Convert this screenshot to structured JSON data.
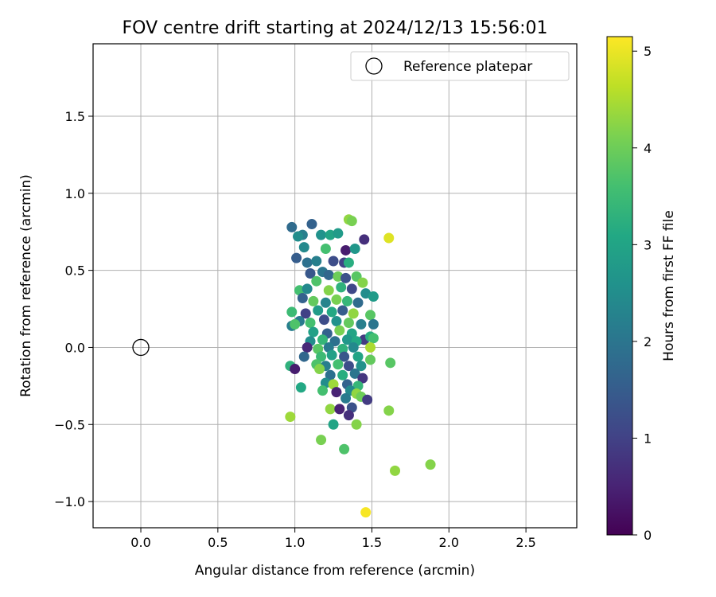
{
  "chart_data": {
    "type": "scatter",
    "title": "FOV centre drift starting at 2024/12/13 15:56:01",
    "xlabel": "Angular distance from reference (arcmin)",
    "ylabel": "Rotation from reference (arcmin)",
    "xlim": [
      -0.31,
      2.83
    ],
    "ylim": [
      -1.17,
      1.97
    ],
    "xticks": [
      0.0,
      0.5,
      1.0,
      1.5,
      2.0,
      2.5
    ],
    "xtick_labels": [
      "0.0",
      "0.5",
      "1.0",
      "1.5",
      "2.0",
      "2.5"
    ],
    "yticks": [
      -1.0,
      -0.5,
      0.0,
      0.5,
      1.0,
      1.5
    ],
    "ytick_labels": [
      "−1.0",
      "−0.5",
      "0.0",
      "0.5",
      "1.0",
      "1.5"
    ],
    "grid": true,
    "legend": {
      "placement": "top-right",
      "label": "Reference platepar"
    },
    "reference_point": {
      "x": 0.0,
      "y": 0.0
    },
    "colorbar": {
      "label": "Hours from first FF file",
      "range": [
        0,
        5.15
      ],
      "ticks": [
        0,
        1,
        2,
        3,
        4,
        5
      ],
      "tick_labels": [
        "0",
        "1",
        "2",
        "3",
        "4",
        "5"
      ],
      "colormap": "viridis"
    },
    "points": [
      {
        "x": 0.98,
        "y": 0.78,
        "h": 1.8
      },
      {
        "x": 1.11,
        "y": 0.8,
        "h": 1.6
      },
      {
        "x": 1.05,
        "y": 0.73,
        "h": 2.2
      },
      {
        "x": 1.02,
        "y": 0.72,
        "h": 2.5
      },
      {
        "x": 1.17,
        "y": 0.73,
        "h": 2.6
      },
      {
        "x": 1.23,
        "y": 0.73,
        "h": 3.0
      },
      {
        "x": 1.28,
        "y": 0.74,
        "h": 2.8
      },
      {
        "x": 1.35,
        "y": 0.83,
        "h": 4.3
      },
      {
        "x": 1.37,
        "y": 0.82,
        "h": 4.1
      },
      {
        "x": 1.45,
        "y": 0.7,
        "h": 0.7
      },
      {
        "x": 1.61,
        "y": 0.71,
        "h": 4.9
      },
      {
        "x": 1.06,
        "y": 0.65,
        "h": 2.4
      },
      {
        "x": 1.2,
        "y": 0.64,
        "h": 3.6
      },
      {
        "x": 1.33,
        "y": 0.63,
        "h": 0.4
      },
      {
        "x": 1.39,
        "y": 0.64,
        "h": 2.7
      },
      {
        "x": 1.01,
        "y": 0.58,
        "h": 1.5
      },
      {
        "x": 1.08,
        "y": 0.55,
        "h": 1.9
      },
      {
        "x": 1.14,
        "y": 0.56,
        "h": 2.2
      },
      {
        "x": 1.25,
        "y": 0.56,
        "h": 1.2
      },
      {
        "x": 1.32,
        "y": 0.55,
        "h": 1.0
      },
      {
        "x": 1.35,
        "y": 0.55,
        "h": 3.2
      },
      {
        "x": 1.1,
        "y": 0.48,
        "h": 1.4
      },
      {
        "x": 1.18,
        "y": 0.49,
        "h": 2.0
      },
      {
        "x": 1.22,
        "y": 0.47,
        "h": 1.7
      },
      {
        "x": 1.28,
        "y": 0.46,
        "h": 4.0
      },
      {
        "x": 1.33,
        "y": 0.45,
        "h": 1.3
      },
      {
        "x": 1.4,
        "y": 0.46,
        "h": 3.8
      },
      {
        "x": 1.44,
        "y": 0.42,
        "h": 4.2
      },
      {
        "x": 1.14,
        "y": 0.43,
        "h": 3.7
      },
      {
        "x": 1.03,
        "y": 0.37,
        "h": 3.6
      },
      {
        "x": 1.08,
        "y": 0.38,
        "h": 2.4
      },
      {
        "x": 1.22,
        "y": 0.37,
        "h": 4.2
      },
      {
        "x": 1.3,
        "y": 0.39,
        "h": 3.3
      },
      {
        "x": 1.37,
        "y": 0.38,
        "h": 1.1
      },
      {
        "x": 1.46,
        "y": 0.35,
        "h": 2.5
      },
      {
        "x": 1.51,
        "y": 0.33,
        "h": 2.8
      },
      {
        "x": 1.05,
        "y": 0.32,
        "h": 1.6
      },
      {
        "x": 1.12,
        "y": 0.3,
        "h": 3.9
      },
      {
        "x": 1.2,
        "y": 0.29,
        "h": 2.3
      },
      {
        "x": 1.27,
        "y": 0.31,
        "h": 4.1
      },
      {
        "x": 1.34,
        "y": 0.3,
        "h": 3.4
      },
      {
        "x": 1.41,
        "y": 0.29,
        "h": 1.8
      },
      {
        "x": 0.98,
        "y": 0.23,
        "h": 3.5
      },
      {
        "x": 1.07,
        "y": 0.22,
        "h": 1.0
      },
      {
        "x": 1.15,
        "y": 0.24,
        "h": 2.8
      },
      {
        "x": 1.24,
        "y": 0.23,
        "h": 3.1
      },
      {
        "x": 1.31,
        "y": 0.24,
        "h": 1.5
      },
      {
        "x": 1.38,
        "y": 0.22,
        "h": 4.3
      },
      {
        "x": 1.49,
        "y": 0.21,
        "h": 3.8
      },
      {
        "x": 1.03,
        "y": 0.17,
        "h": 2.1
      },
      {
        "x": 1.1,
        "y": 0.16,
        "h": 3.6
      },
      {
        "x": 1.19,
        "y": 0.18,
        "h": 1.2
      },
      {
        "x": 1.27,
        "y": 0.17,
        "h": 2.6
      },
      {
        "x": 1.35,
        "y": 0.16,
        "h": 3.9
      },
      {
        "x": 1.43,
        "y": 0.15,
        "h": 2.2
      },
      {
        "x": 1.51,
        "y": 0.15,
        "h": 2.0
      },
      {
        "x": 0.98,
        "y": 0.14,
        "h": 2.2
      },
      {
        "x": 1.0,
        "y": 0.15,
        "h": 3.7
      },
      {
        "x": 1.12,
        "y": 0.1,
        "h": 2.9
      },
      {
        "x": 1.21,
        "y": 0.09,
        "h": 1.6
      },
      {
        "x": 1.29,
        "y": 0.11,
        "h": 4.1
      },
      {
        "x": 1.37,
        "y": 0.09,
        "h": 3.0
      },
      {
        "x": 1.45,
        "y": 0.05,
        "h": 0.9
      },
      {
        "x": 1.49,
        "y": 0.07,
        "h": 3.2
      },
      {
        "x": 1.51,
        "y": 0.06,
        "h": 3.6
      },
      {
        "x": 1.1,
        "y": 0.04,
        "h": 2.5
      },
      {
        "x": 1.18,
        "y": 0.05,
        "h": 3.4
      },
      {
        "x": 1.26,
        "y": 0.04,
        "h": 1.9
      },
      {
        "x": 1.34,
        "y": 0.05,
        "h": 2.7
      },
      {
        "x": 1.4,
        "y": 0.04,
        "h": 3.1
      },
      {
        "x": 1.08,
        "y": 0.0,
        "h": 0.6
      },
      {
        "x": 1.15,
        "y": -0.01,
        "h": 3.8
      },
      {
        "x": 1.22,
        "y": 0.0,
        "h": 2.1
      },
      {
        "x": 1.31,
        "y": -0.01,
        "h": 3.3
      },
      {
        "x": 1.38,
        "y": 0.0,
        "h": 2.4
      },
      {
        "x": 1.49,
        "y": 0.0,
        "h": 4.5
      },
      {
        "x": 1.06,
        "y": -0.06,
        "h": 1.7
      },
      {
        "x": 1.17,
        "y": -0.06,
        "h": 3.5
      },
      {
        "x": 1.24,
        "y": -0.05,
        "h": 2.9
      },
      {
        "x": 1.32,
        "y": -0.06,
        "h": 1.4
      },
      {
        "x": 1.41,
        "y": -0.06,
        "h": 3.0
      },
      {
        "x": 1.49,
        "y": -0.08,
        "h": 3.9
      },
      {
        "x": 0.97,
        "y": -0.12,
        "h": 3.3
      },
      {
        "x": 1.0,
        "y": -0.14,
        "h": 0.4
      },
      {
        "x": 1.14,
        "y": -0.11,
        "h": 3.7
      },
      {
        "x": 1.2,
        "y": -0.12,
        "h": 2.2
      },
      {
        "x": 1.28,
        "y": -0.11,
        "h": 3.6
      },
      {
        "x": 1.35,
        "y": -0.12,
        "h": 1.2
      },
      {
        "x": 1.43,
        "y": -0.12,
        "h": 2.6
      },
      {
        "x": 1.62,
        "y": -0.1,
        "h": 3.8
      },
      {
        "x": 1.16,
        "y": -0.14,
        "h": 4.2
      },
      {
        "x": 1.23,
        "y": -0.18,
        "h": 1.9
      },
      {
        "x": 1.31,
        "y": -0.18,
        "h": 3.2
      },
      {
        "x": 1.39,
        "y": -0.17,
        "h": 2.0
      },
      {
        "x": 1.44,
        "y": -0.2,
        "h": 0.8
      },
      {
        "x": 1.2,
        "y": -0.23,
        "h": 2.5
      },
      {
        "x": 1.25,
        "y": -0.24,
        "h": 4.4
      },
      {
        "x": 1.34,
        "y": -0.24,
        "h": 1.6
      },
      {
        "x": 1.41,
        "y": -0.25,
        "h": 3.4
      },
      {
        "x": 1.04,
        "y": -0.26,
        "h": 3.1
      },
      {
        "x": 1.18,
        "y": -0.28,
        "h": 3.6
      },
      {
        "x": 1.27,
        "y": -0.29,
        "h": 0.5
      },
      {
        "x": 1.36,
        "y": -0.28,
        "h": 2.4
      },
      {
        "x": 1.4,
        "y": -0.3,
        "h": 4.3
      },
      {
        "x": 1.43,
        "y": -0.32,
        "h": 4.0
      },
      {
        "x": 1.47,
        "y": -0.34,
        "h": 0.9
      },
      {
        "x": 1.33,
        "y": -0.33,
        "h": 2.1
      },
      {
        "x": 1.37,
        "y": -0.39,
        "h": 1.3
      },
      {
        "x": 1.23,
        "y": -0.4,
        "h": 4.3
      },
      {
        "x": 1.29,
        "y": -0.4,
        "h": 0.5
      },
      {
        "x": 1.35,
        "y": -0.44,
        "h": 0.7
      },
      {
        "x": 0.97,
        "y": -0.45,
        "h": 4.4
      },
      {
        "x": 1.61,
        "y": -0.41,
        "h": 4.2
      },
      {
        "x": 1.25,
        "y": -0.5,
        "h": 3.0
      },
      {
        "x": 1.4,
        "y": -0.5,
        "h": 4.2
      },
      {
        "x": 1.17,
        "y": -0.6,
        "h": 4.1
      },
      {
        "x": 1.32,
        "y": -0.66,
        "h": 3.7
      },
      {
        "x": 1.88,
        "y": -0.76,
        "h": 4.2
      },
      {
        "x": 1.65,
        "y": -0.8,
        "h": 4.3
      },
      {
        "x": 1.46,
        "y": -1.07,
        "h": 5.1
      }
    ]
  }
}
